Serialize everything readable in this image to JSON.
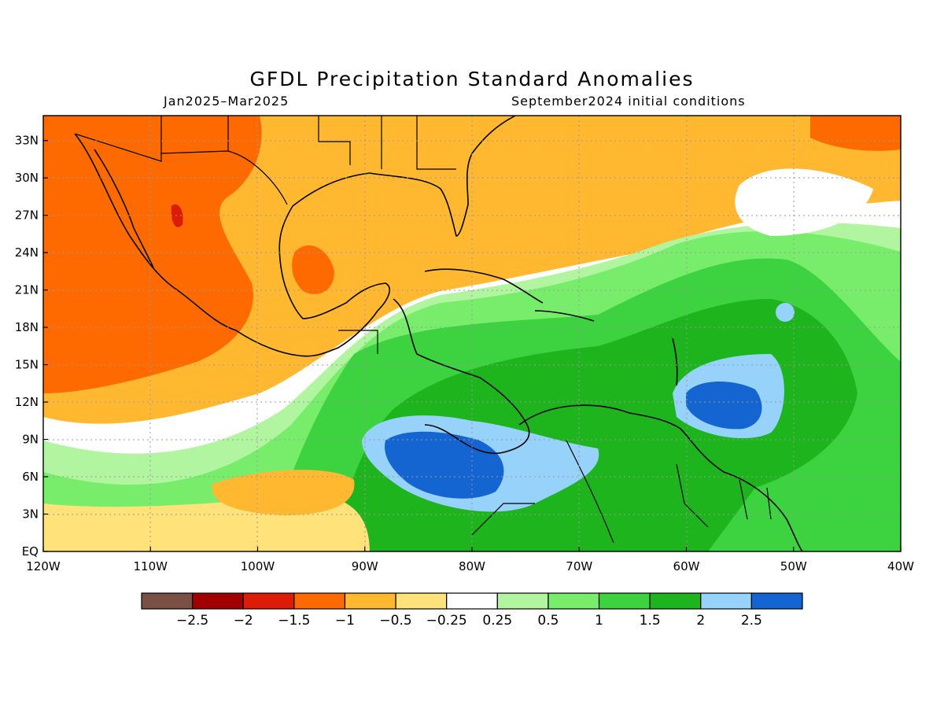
{
  "map": {
    "title": "GFDL Precipitation Standard Anomalies",
    "period": "Jan2025–Mar2025",
    "initial_conditions": "September2024 initial conditions",
    "lon_range": [
      -120,
      -40
    ],
    "lat_range": [
      0,
      35
    ],
    "lon_ticks": [
      {
        "value": -120,
        "label": "120W"
      },
      {
        "value": -110,
        "label": "110W"
      },
      {
        "value": -100,
        "label": "100W"
      },
      {
        "value": -90,
        "label": "90W"
      },
      {
        "value": -80,
        "label": "80W"
      },
      {
        "value": -70,
        "label": "70W"
      },
      {
        "value": -60,
        "label": "60W"
      },
      {
        "value": -50,
        "label": "50W"
      },
      {
        "value": -40,
        "label": "40W"
      }
    ],
    "lat_ticks": [
      {
        "value": 0,
        "label": "EQ"
      },
      {
        "value": 3,
        "label": "3N"
      },
      {
        "value": 6,
        "label": "6N"
      },
      {
        "value": 9,
        "label": "9N"
      },
      {
        "value": 12,
        "label": "12N"
      },
      {
        "value": 15,
        "label": "15N"
      },
      {
        "value": 18,
        "label": "18N"
      },
      {
        "value": 21,
        "label": "21N"
      },
      {
        "value": 24,
        "label": "24N"
      },
      {
        "value": 27,
        "label": "27N"
      },
      {
        "value": 30,
        "label": "30N"
      },
      {
        "value": 33,
        "label": "33N"
      }
    ]
  },
  "colorbar": {
    "colors": [
      "#7a5044",
      "#a00000",
      "#dc1c06",
      "#ff6a00",
      "#ffb830",
      "#ffe27a",
      "#ffffff",
      "#b2f5a0",
      "#78ed6c",
      "#3cd240",
      "#1eb41e",
      "#96d2fa",
      "#1464d2"
    ],
    "labels": [
      "−2.5",
      "−2",
      "−1.5",
      "−1",
      "−0.5",
      "−0.25",
      "0.25",
      "0.5",
      "1",
      "1.5",
      "2",
      "2.5"
    ]
  }
}
